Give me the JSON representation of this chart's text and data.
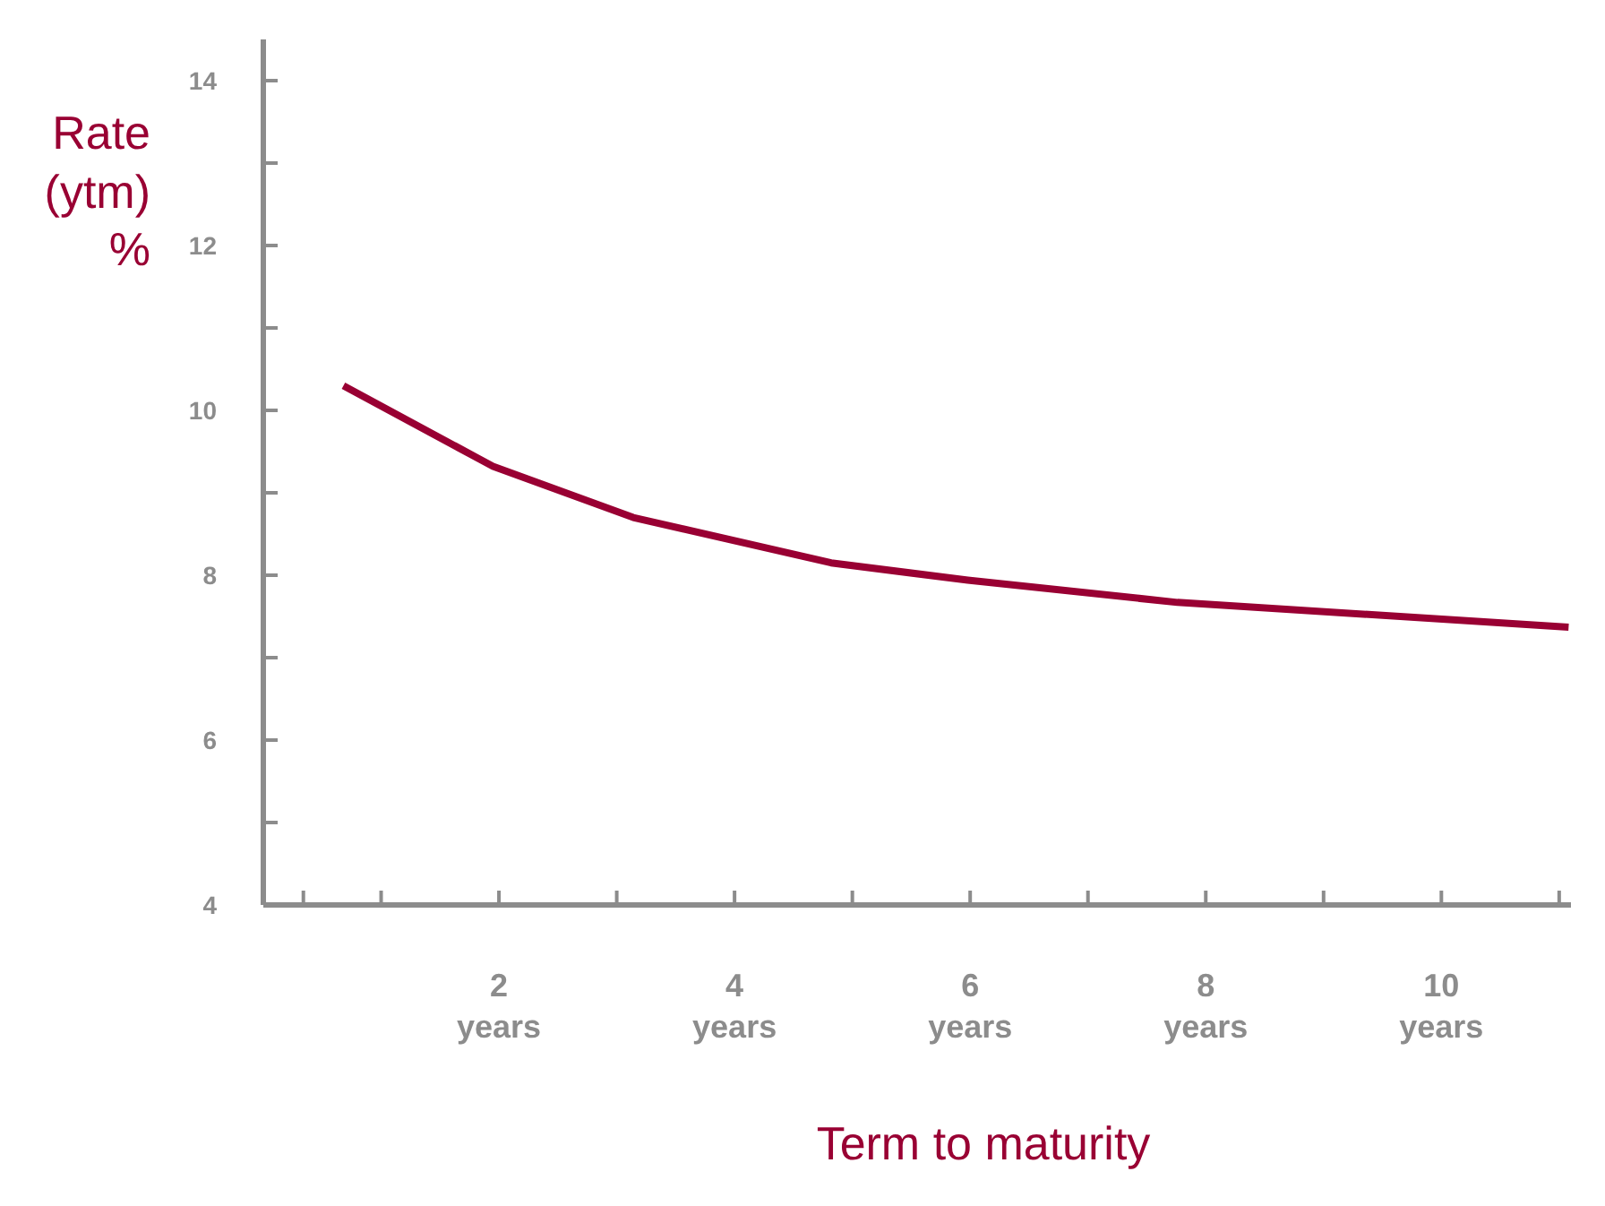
{
  "chart_data": {
    "type": "line",
    "xlabel": "Term to maturity",
    "ylabel": "Rate\n(ytm)\n%",
    "x": [
      0.68,
      1.95,
      3.14,
      4.82,
      5.98,
      7.76,
      11.08
    ],
    "series": [
      {
        "color": "#990033",
        "values": [
          10.3,
          9.32,
          8.7,
          8.15,
          7.94,
          7.67,
          7.37
        ]
      }
    ],
    "xlim": [
      0,
      11.1
    ],
    "xticks": [
      {
        "value": 0.34,
        "label": null
      },
      {
        "value": 1,
        "label": null
      },
      {
        "value": 2,
        "label": "2\nyears"
      },
      {
        "value": 3,
        "label": null
      },
      {
        "value": 4,
        "label": "4\nyears"
      },
      {
        "value": 5,
        "label": null
      },
      {
        "value": 6,
        "label": "6\nyears"
      },
      {
        "value": 7,
        "label": null
      },
      {
        "value": 8,
        "label": "8\nyears"
      },
      {
        "value": 9,
        "label": null
      },
      {
        "value": 10,
        "label": "10\nyears"
      },
      {
        "value": 11,
        "label": null
      }
    ],
    "ylim": [
      4,
      14.5
    ],
    "yticks": [
      4,
      {
        "value": 5,
        "label": null
      },
      6,
      {
        "value": 7,
        "label": null
      },
      8,
      {
        "value": 9,
        "label": null
      },
      10,
      {
        "value": 11,
        "label": null
      },
      12,
      {
        "value": 13,
        "label": null
      },
      14
    ]
  }
}
